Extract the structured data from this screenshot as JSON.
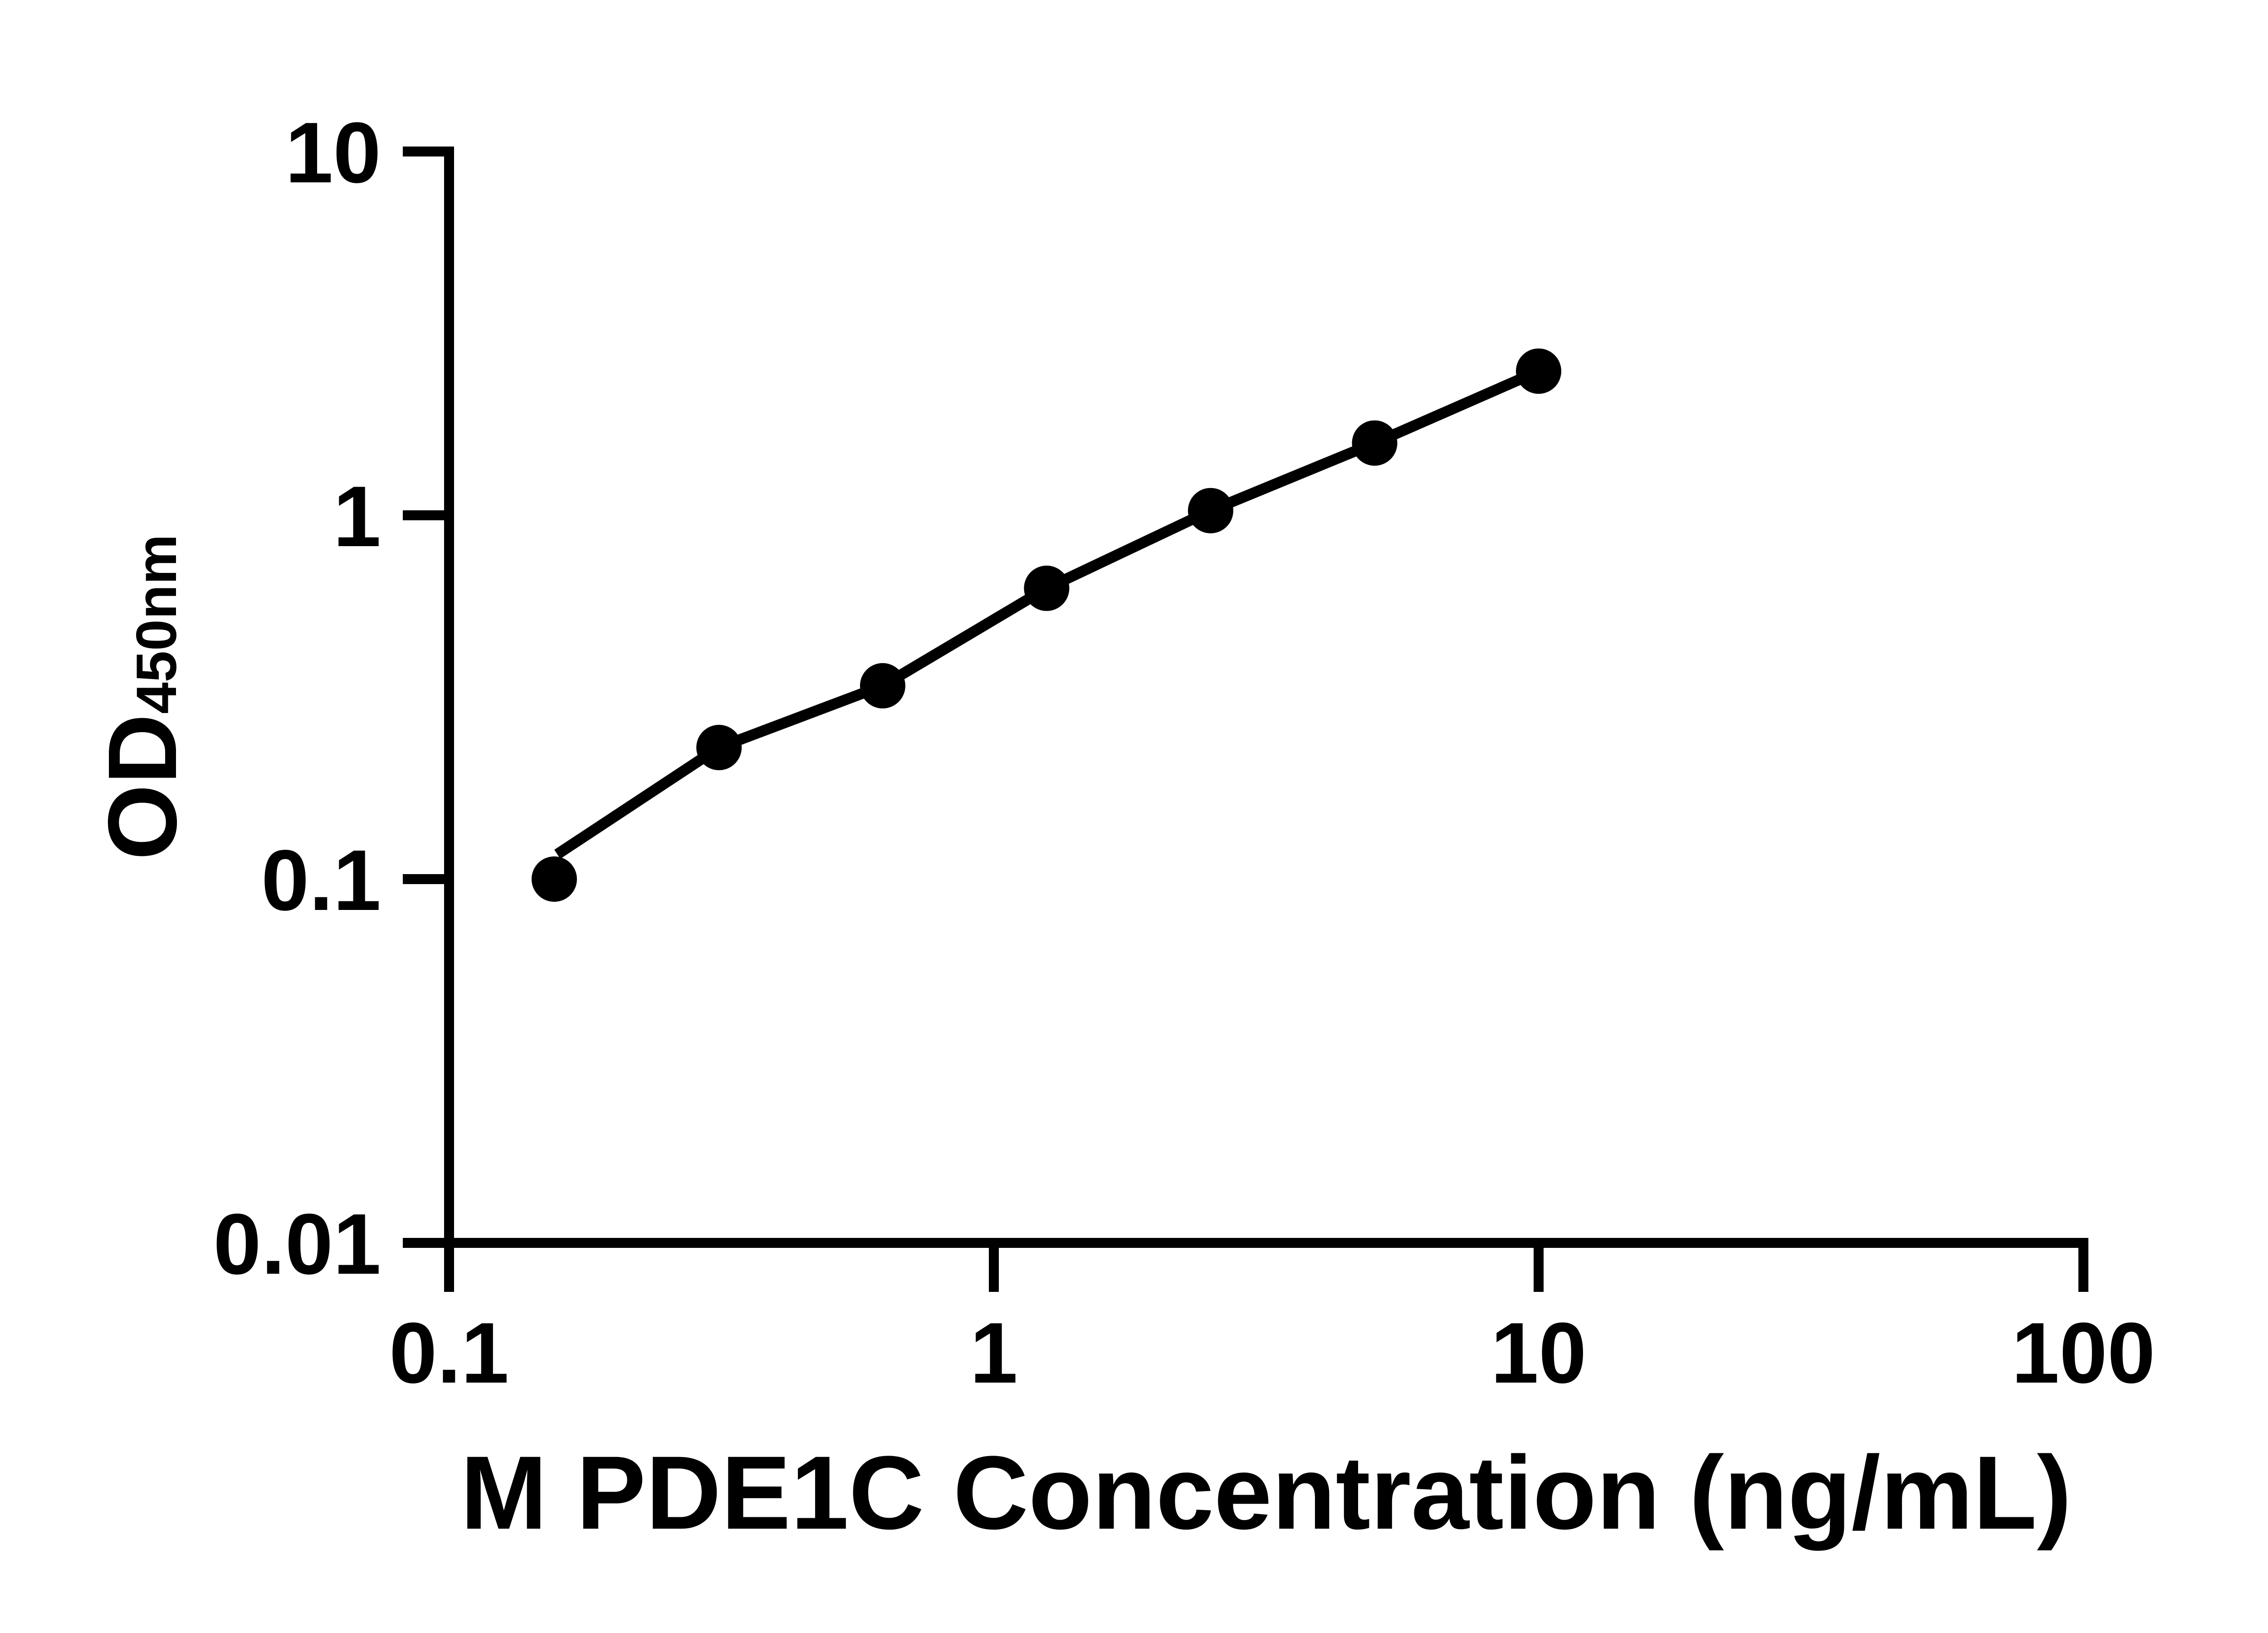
{
  "figure": {
    "background": "#ffffff",
    "ink": "#000000"
  },
  "chart_data": {
    "type": "scatter",
    "xlabel": "M PDE1C Concentration (ng/mL)",
    "ylabel": {
      "main": "OD",
      "subscript": "450nm"
    },
    "x_scale": "log",
    "y_scale": "log",
    "xlim": [
      0.1,
      100
    ],
    "ylim": [
      0.01,
      10
    ],
    "x_ticks": {
      "values": [
        0.1,
        1,
        10,
        100
      ],
      "labels": [
        "0.1",
        "1",
        "10",
        "100"
      ]
    },
    "y_ticks": {
      "values": [
        10,
        1,
        0.1,
        0.01
      ],
      "labels": [
        "10",
        "1",
        "0.1",
        "0.01"
      ]
    },
    "grid": false,
    "legend": false,
    "marker": "filled-circle",
    "marker_color": "#000000",
    "line_color": "#000000",
    "series": [
      {
        "points": [
          {
            "x": 0.156,
            "od": 0.1
          },
          {
            "x": 0.313,
            "od": 0.23
          },
          {
            "x": 0.625,
            "od": 0.34
          },
          {
            "x": 1.25,
            "od": 0.63
          },
          {
            "x": 2.5,
            "od": 1.03
          },
          {
            "x": 5,
            "od": 1.58
          },
          {
            "x": 10,
            "od": 2.49
          }
        ]
      }
    ],
    "fit_line": {
      "anchors": [
        {
          "x": 0.158,
          "od": 0.117
        },
        {
          "x": 0.313,
          "od": 0.23
        },
        {
          "x": 0.625,
          "od": 0.34
        },
        {
          "x": 1.25,
          "od": 0.63
        },
        {
          "x": 2.5,
          "od": 1.03
        },
        {
          "x": 5,
          "od": 1.58
        },
        {
          "x": 10,
          "od": 2.49
        }
      ]
    }
  }
}
